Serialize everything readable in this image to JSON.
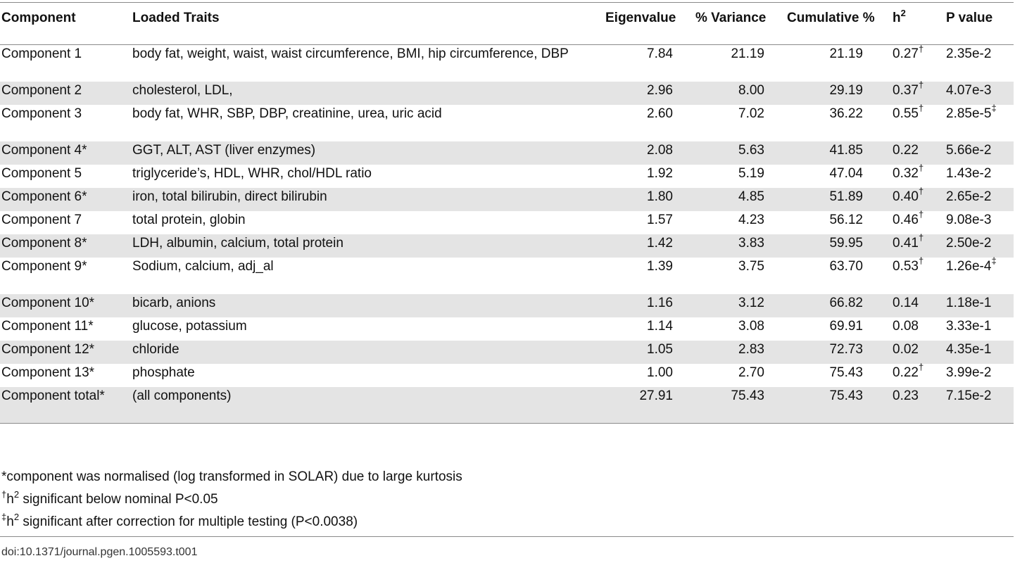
{
  "table": {
    "headers": {
      "component": "Component",
      "traits": "Loaded Traits",
      "eigen": "Eigenvalue",
      "variance": "% Variance",
      "cumulative": "Cumulative %",
      "h2_base": "h",
      "h2_sup": "2",
      "pvalue": "P value"
    },
    "rows": [
      {
        "component": "Component 1",
        "traits": "body fat, weight, waist, waist circumference, BMI, hip circumference, DBP",
        "eigen": "7.84",
        "variance": "21.19",
        "cumulative": "21.19",
        "h2": "0.27",
        "h2_mark": "†",
        "pvalue": "2.35e-2",
        "p_mark": ""
      },
      {
        "component": "Component 2",
        "traits": "cholesterol, LDL,",
        "eigen": "2.96",
        "variance": "8.00",
        "cumulative": "29.19",
        "h2": "0.37",
        "h2_mark": "†",
        "pvalue": "4.07e-3",
        "p_mark": ""
      },
      {
        "component": "Component 3",
        "traits": "body fat, WHR, SBP, DBP, creatinine, urea, uric acid",
        "eigen": "2.60",
        "variance": "7.02",
        "cumulative": "36.22",
        "h2": "0.55",
        "h2_mark": "†",
        "pvalue": "2.85e-5",
        "p_mark": "‡"
      },
      {
        "component": "Component 4*",
        "traits": "GGT, ALT, AST (liver enzymes)",
        "eigen": "2.08",
        "variance": "5.63",
        "cumulative": "41.85",
        "h2": "0.22",
        "h2_mark": "",
        "pvalue": "5.66e-2",
        "p_mark": ""
      },
      {
        "component": "Component 5",
        "traits": "triglyceride’s, HDL, WHR, chol/HDL ratio",
        "eigen": "1.92",
        "variance": "5.19",
        "cumulative": "47.04",
        "h2": "0.32",
        "h2_mark": "†",
        "pvalue": "1.43e-2",
        "p_mark": ""
      },
      {
        "component": "Component 6*",
        "traits": "iron, total bilirubin, direct bilirubin",
        "eigen": "1.80",
        "variance": "4.85",
        "cumulative": "51.89",
        "h2": "0.40",
        "h2_mark": "†",
        "pvalue": "2.65e-2",
        "p_mark": ""
      },
      {
        "component": "Component 7",
        "traits": "total protein, globin",
        "eigen": "1.57",
        "variance": "4.23",
        "cumulative": "56.12",
        "h2": "0.46",
        "h2_mark": "†",
        "pvalue": "9.08e-3",
        "p_mark": ""
      },
      {
        "component": "Component 8*",
        "traits": "LDH, albumin, calcium, total protein",
        "eigen": "1.42",
        "variance": "3.83",
        "cumulative": "59.95",
        "h2": "0.41",
        "h2_mark": "†",
        "pvalue": "2.50e-2",
        "p_mark": ""
      },
      {
        "component": "Component 9*",
        "traits": "Sodium, calcium, adj_al",
        "eigen": "1.39",
        "variance": "3.75",
        "cumulative": "63.70",
        "h2": "0.53",
        "h2_mark": "†",
        "pvalue": "1.26e-4",
        "p_mark": "‡"
      },
      {
        "component": "Component 10*",
        "traits": "bicarb, anions",
        "eigen": "1.16",
        "variance": "3.12",
        "cumulative": "66.82",
        "h2": "0.14",
        "h2_mark": "",
        "pvalue": "1.18e-1",
        "p_mark": ""
      },
      {
        "component": "Component 11*",
        "traits": "glucose, potassium",
        "eigen": "1.14",
        "variance": "3.08",
        "cumulative": "69.91",
        "h2": "0.08",
        "h2_mark": "",
        "pvalue": "3.33e-1",
        "p_mark": ""
      },
      {
        "component": "Component 12*",
        "traits": "chloride",
        "eigen": "1.05",
        "variance": "2.83",
        "cumulative": "72.73",
        "h2": "0.02",
        "h2_mark": "",
        "pvalue": "4.35e-1",
        "p_mark": ""
      },
      {
        "component": "Component 13*",
        "traits": "phosphate",
        "eigen": "1.00",
        "variance": "2.70",
        "cumulative": "75.43",
        "h2": "0.22",
        "h2_mark": "†",
        "pvalue": "3.99e-2",
        "p_mark": ""
      },
      {
        "component": "Component total*",
        "traits": "(all components)",
        "eigen": "27.91",
        "variance": "75.43",
        "cumulative": "75.43",
        "h2": "0.23",
        "h2_mark": "",
        "pvalue": "7.15e-2",
        "p_mark": ""
      }
    ]
  },
  "footnotes": [
    {
      "mark": "*",
      "h": "",
      "sup": "",
      "text": "component was normalised (log transformed in SOLAR) due to large kurtosis"
    },
    {
      "mark": "†",
      "h": "h",
      "sup": "2",
      "text": " significant below nominal P<0.05"
    },
    {
      "mark": "‡",
      "h": "h",
      "sup": "2",
      "text": " significant after correction for multiple testing (P<0.0038)"
    }
  ],
  "doi": "doi:10.1371/journal.pgen.1005593.t001",
  "colors": {
    "row_shade": "#e4e4e4",
    "rule": "#8a8a8a"
  }
}
